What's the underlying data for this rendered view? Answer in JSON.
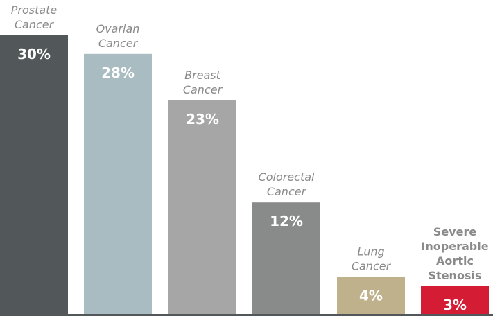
{
  "chart_data": {
    "type": "bar",
    "categories": [
      [
        "Prostate",
        "Cancer"
      ],
      [
        "Ovarian",
        "Cancer"
      ],
      [
        "Breast",
        "Cancer"
      ],
      [
        "Colorectal",
        "Cancer"
      ],
      [
        "Lung",
        "Cancer"
      ],
      [
        "Severe",
        "Inoperable",
        "Aortic",
        "Stenosis"
      ]
    ],
    "values": [
      30,
      28,
      23,
      12,
      4,
      3
    ],
    "value_labels": [
      "30%",
      "28%",
      "23%",
      "12%",
      "4%",
      "3%"
    ],
    "colors": [
      "#525759",
      "#a8bcc1",
      "#a6a6a6",
      "#888b8a",
      "#bfb18b",
      "#d41c34"
    ],
    "highlight_label_color": "#c8102e",
    "ylim": [
      0,
      30
    ],
    "title": "",
    "xlabel": "",
    "ylabel": "",
    "grid": false,
    "legend": "none"
  }
}
